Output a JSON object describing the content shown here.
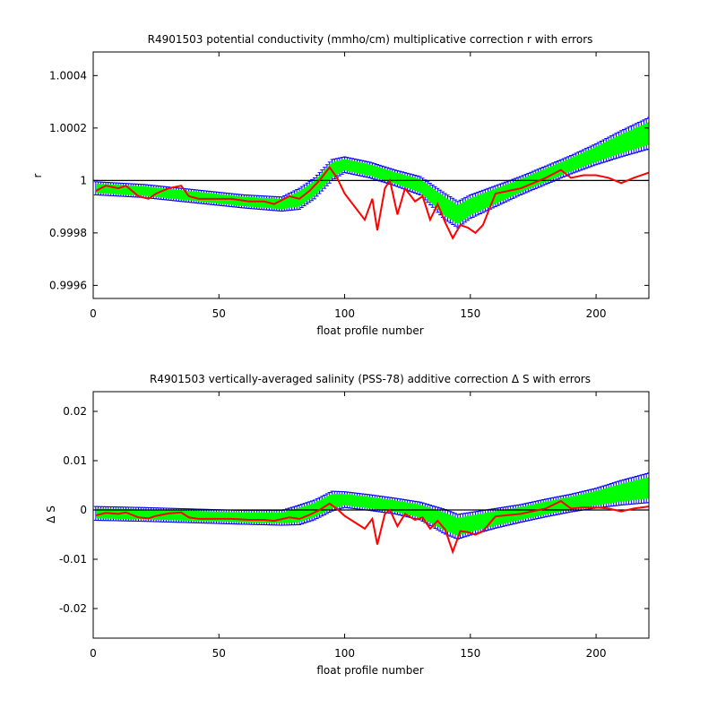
{
  "chart_data": [
    {
      "type": "line",
      "title": "R4901503 potential conductivity (mmho/cm) multiplicative correction r with errors",
      "xlabel": "float profile number",
      "ylabel": "r",
      "xlim": [
        0,
        221
      ],
      "ylim": [
        0.99955,
        1.00049
      ],
      "xticks": [
        0,
        50,
        100,
        150,
        200
      ],
      "yticks": [
        0.9996,
        0.9998,
        1,
        1.0002,
        1.0004
      ],
      "ytick_labels": [
        "0.9996",
        "0.9998",
        "1",
        "1.0002",
        "1.0004"
      ],
      "reference_line": 1,
      "grid": false,
      "colors": {
        "error_bars": "#0000ff",
        "fill": "#00ff00",
        "series": "#ff0000",
        "reference": "#000000"
      },
      "series": [
        {
          "role": "fit_with_errors",
          "x": [
            1,
            20,
            40,
            60,
            75,
            82,
            88,
            95,
            100,
            110,
            120,
            130,
            140,
            145,
            150,
            160,
            170,
            180,
            190,
            200,
            210,
            221
          ],
          "y": [
            0.99997,
            0.99996,
            0.99994,
            0.99992,
            0.99991,
            0.99993,
            0.99997,
            1.00004,
            1.00006,
            1.00004,
            1.00001,
            0.99998,
            0.9999,
            0.99987,
            0.9999,
            0.99994,
            0.99998,
            1.00002,
            1.00006,
            1.0001,
            1.00014,
            1.00018
          ],
          "err": [
            2.5e-05,
            2.5e-05,
            2.5e-05,
            2.5e-05,
            2.7e-05,
            4e-05,
            4e-05,
            4e-05,
            3e-05,
            3e-05,
            3e-05,
            3.5e-05,
            5e-05,
            5e-05,
            4.5e-05,
            4e-05,
            3.5e-05,
            3.5e-05,
            3.5e-05,
            4e-05,
            5e-05,
            6e-05
          ]
        },
        {
          "role": "profile_correction",
          "x": [
            1,
            5,
            10,
            13,
            18,
            22,
            25,
            30,
            35,
            38,
            42,
            48,
            55,
            62,
            68,
            72,
            78,
            82,
            86,
            90,
            94,
            97,
            100,
            104,
            108,
            111,
            113,
            116,
            118,
            121,
            124,
            128,
            131,
            134,
            137,
            140,
            143,
            146,
            149,
            152,
            155,
            160,
            170,
            180,
            186,
            190,
            195,
            200,
            205,
            210,
            215,
            221
          ],
          "y": [
            0.99996,
            0.99998,
            0.99997,
            0.99998,
            0.99994,
            0.99993,
            0.99995,
            0.99997,
            0.99998,
            0.99994,
            0.99993,
            0.99993,
            0.99993,
            0.99992,
            0.99992,
            0.99991,
            0.99994,
            0.99993,
            0.99996,
            1.0,
            1.00005,
            1.00001,
            0.99995,
            0.9999,
            0.99985,
            0.99993,
            0.99981,
            0.99997,
            1.0,
            0.99987,
            0.99997,
            0.99992,
            0.99994,
            0.99985,
            0.99991,
            0.99984,
            0.99978,
            0.99983,
            0.99982,
            0.9998,
            0.99983,
            0.99995,
            0.99997,
            1.00001,
            1.00004,
            1.00001,
            1.00002,
            1.00002,
            1.00001,
            0.99999,
            1.00001,
            1.00003
          ]
        }
      ]
    },
    {
      "type": "line",
      "title": "R4901503 vertically-averaged salinity (PSS-78) additive correction Δ S with errors",
      "xlabel": "float profile number",
      "ylabel": "Δ S",
      "xlim": [
        0,
        221
      ],
      "ylim": [
        -0.026,
        0.024
      ],
      "xticks": [
        0,
        50,
        100,
        150,
        200
      ],
      "yticks": [
        -0.02,
        -0.01,
        0,
        0.01,
        0.02
      ],
      "ytick_labels": [
        "-0.02",
        "-0.01",
        "0",
        "0.01",
        "0.02"
      ],
      "reference_line": 0,
      "grid": false,
      "colors": {
        "error_bars": "#0000ff",
        "fill": "#00ff00",
        "series": "#ff0000",
        "reference": "#000000"
      },
      "series": [
        {
          "role": "fit_with_errors",
          "x": [
            1,
            20,
            40,
            60,
            75,
            82,
            88,
            95,
            100,
            110,
            120,
            130,
            140,
            145,
            150,
            160,
            170,
            180,
            190,
            200,
            210,
            221
          ],
          "y": [
            -0.0007,
            -0.0009,
            -0.0012,
            -0.0015,
            -0.0016,
            -0.001,
            0.0,
            0.0018,
            0.0021,
            0.0015,
            0.0008,
            -0.0002,
            -0.0024,
            -0.0034,
            -0.0028,
            -0.0017,
            -0.0007,
            0.0004,
            0.0014,
            0.0024,
            0.0035,
            0.0045
          ],
          "err": [
            0.0014,
            0.0014,
            0.0014,
            0.0014,
            0.0015,
            0.002,
            0.002,
            0.002,
            0.0016,
            0.0016,
            0.0016,
            0.0018,
            0.0025,
            0.0025,
            0.0023,
            0.002,
            0.0018,
            0.0018,
            0.0018,
            0.002,
            0.0025,
            0.003
          ]
        },
        {
          "role": "profile_correction",
          "x": [
            1,
            5,
            10,
            13,
            18,
            22,
            25,
            30,
            35,
            38,
            42,
            48,
            55,
            62,
            68,
            72,
            78,
            82,
            86,
            90,
            94,
            97,
            100,
            104,
            108,
            111,
            113,
            116,
            118,
            121,
            124,
            128,
            131,
            134,
            137,
            140,
            143,
            146,
            149,
            152,
            155,
            160,
            170,
            180,
            186,
            190,
            195,
            200,
            205,
            210,
            215,
            221
          ],
          "y": [
            -0.0011,
            -0.0006,
            -0.0008,
            -0.0005,
            -0.0015,
            -0.0017,
            -0.0012,
            -0.0007,
            -0.0005,
            -0.0015,
            -0.0018,
            -0.0018,
            -0.0018,
            -0.002,
            -0.002,
            -0.0022,
            -0.0015,
            -0.0018,
            -0.001,
            0.0,
            0.0013,
            0.0002,
            -0.0012,
            -0.0025,
            -0.0038,
            -0.0018,
            -0.007,
            -0.0008,
            0.0,
            -0.0033,
            -0.0008,
            -0.002,
            -0.0015,
            -0.0038,
            -0.0022,
            -0.004,
            -0.0085,
            -0.0043,
            -0.0045,
            -0.005,
            -0.0043,
            -0.0013,
            -0.0008,
            0.0003,
            0.0018,
            0.0003,
            0.0005,
            0.0005,
            0.0003,
            -0.0003,
            0.0003,
            0.0007
          ]
        }
      ]
    }
  ]
}
